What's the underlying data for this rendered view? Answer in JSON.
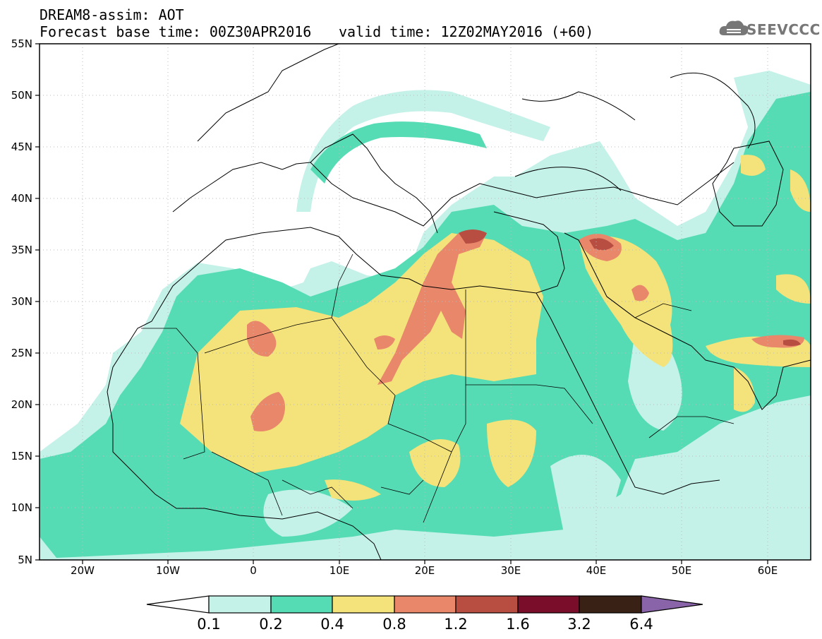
{
  "header": {
    "line1": "DREAM8-assim: AOT",
    "line2": "Forecast base time: 00Z30APR2016",
    "valid": "valid time: 12Z02MAY2016 (+60)",
    "logo": "SEEVCCC"
  },
  "axes": {
    "lat_labels": [
      "55N",
      "50N",
      "45N",
      "40N",
      "35N",
      "30N",
      "25N",
      "20N",
      "15N",
      "10N",
      "5N"
    ],
    "lon_labels": [
      "20W",
      "10W",
      "0",
      "10E",
      "20E",
      "30E",
      "40E",
      "50E",
      "60E"
    ]
  },
  "colorbar": {
    "labels": [
      "0.1",
      "0.2",
      "0.4",
      "0.8",
      "1.2",
      "1.6",
      "3.2",
      "6.4"
    ],
    "colors": [
      "#ffffff",
      "#c4f1e8",
      "#55dcb4",
      "#f4e27a",
      "#e8876a",
      "#b84e42",
      "#7a0e2a",
      "#3a2116",
      "#8a64a8"
    ]
  },
  "map": {
    "field": "Aerosol Optical Thickness (AOT)",
    "domain": {
      "lon_min": -25,
      "lon_max": 65,
      "lat_min": 5,
      "lat_max": 55
    }
  }
}
